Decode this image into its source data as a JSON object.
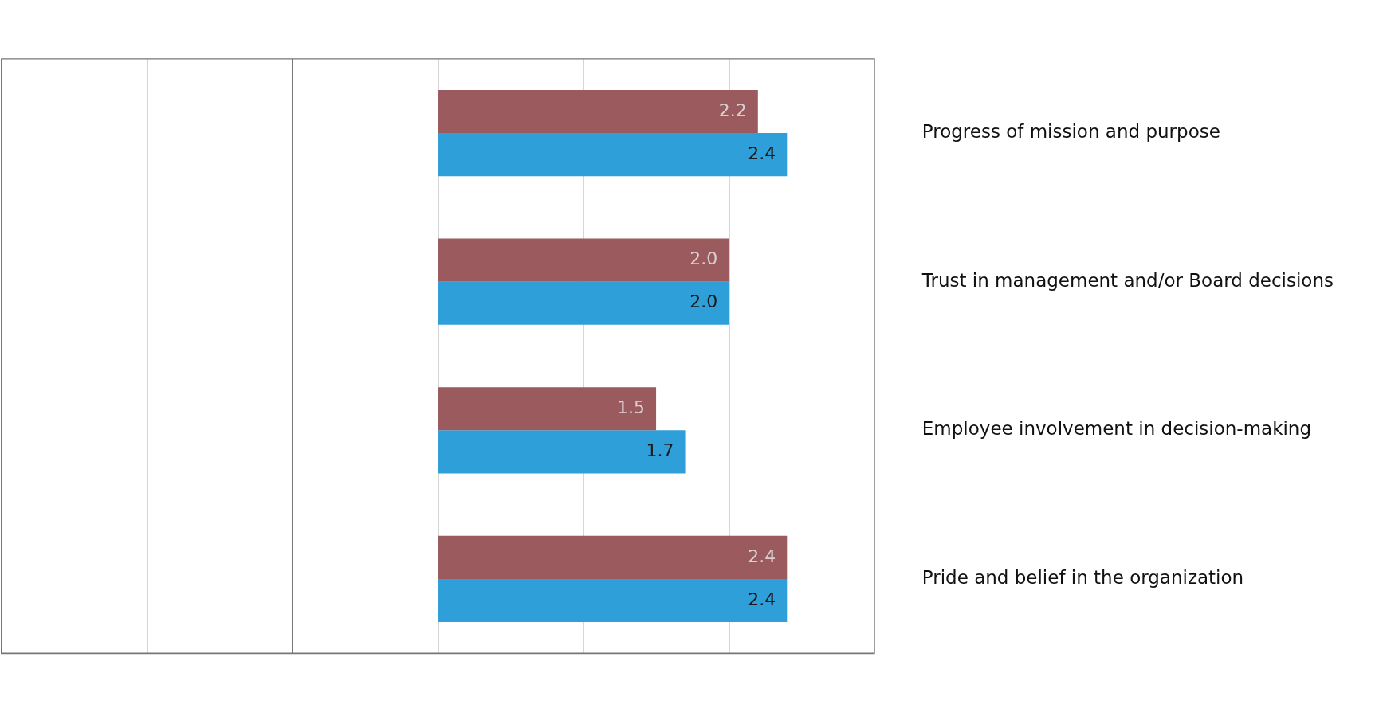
{
  "chart_data": {
    "type": "bar",
    "orientation": "horizontal",
    "categories": [
      "Progress of mission and purpose",
      "Trust in management and/or Board decisions",
      "Employee involvement in decision-making",
      "Pride and belief in the organization"
    ],
    "series": [
      {
        "color": "#9b5a5e",
        "values": [
          2.2,
          2.0,
          1.5,
          2.4
        ],
        "value_labels": [
          "2.2",
          "2.0",
          "1.5",
          "2.4"
        ]
      },
      {
        "color": "#2e9fd9",
        "values": [
          2.4,
          2.0,
          1.7,
          2.4
        ],
        "value_labels": [
          "2.4",
          "2.0",
          "1.7",
          "2.4"
        ]
      }
    ],
    "xlim": [
      -3,
      3
    ],
    "xticks": [
      {
        "value": -3,
        "label": null
      },
      {
        "value": -2,
        "label": null
      },
      {
        "value": -1,
        "label": null
      },
      {
        "value": 0,
        "label": null
      },
      {
        "value": 1,
        "label": null
      },
      {
        "value": 2,
        "label": null
      },
      {
        "value": 3,
        "label": null
      }
    ],
    "grid": "x",
    "tick_labels": "y",
    "legend": false
  }
}
